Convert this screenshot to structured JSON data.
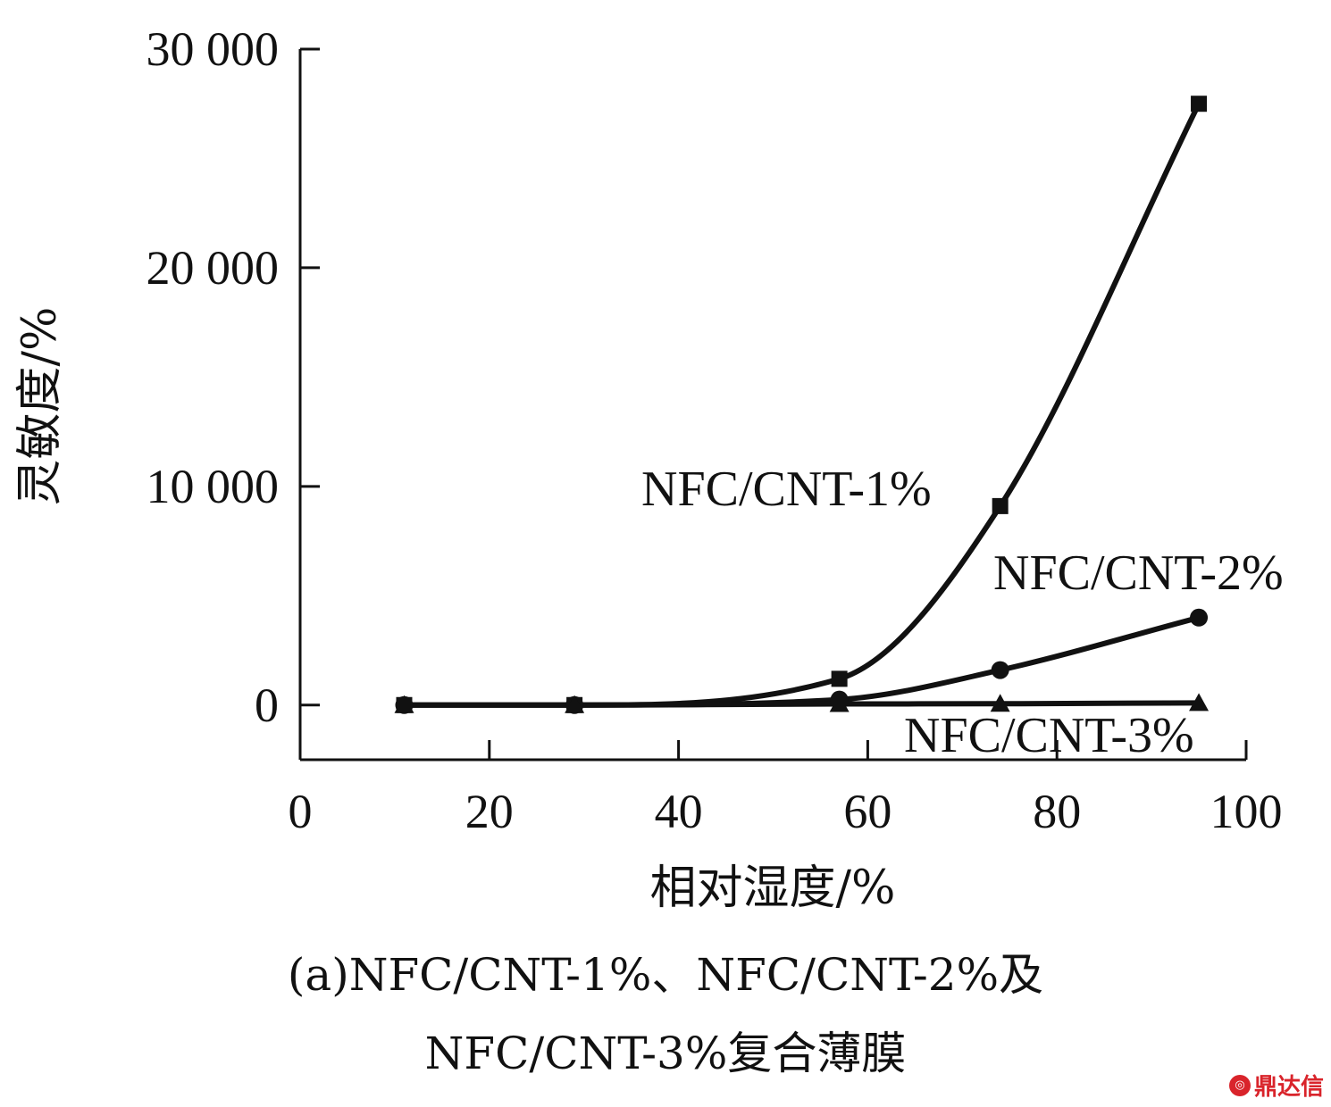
{
  "chart_data": {
    "type": "line",
    "title": "",
    "xlabel": "相对湿度/%",
    "ylabel": "灵敏度/%",
    "xlim": [
      0,
      100
    ],
    "ylim": [
      -2500,
      30000
    ],
    "x_ticks": [
      0,
      20,
      40,
      60,
      80,
      100
    ],
    "x_tick_labels": [
      "0",
      "20",
      "40",
      "60",
      "80",
      "100"
    ],
    "y_ticks": [
      0,
      10000,
      20000,
      30000
    ],
    "y_tick_labels": [
      "0",
      "10 000",
      "20 000",
      "30 000"
    ],
    "grid": false,
    "legend": "inline labels",
    "series": [
      {
        "name": "NFC/CNT-1%",
        "marker": "square",
        "x": [
          11,
          29,
          57,
          74,
          95
        ],
        "y": [
          0,
          0,
          1200,
          9100,
          27500
        ]
      },
      {
        "name": "NFC/CNT-2%",
        "marker": "circle",
        "x": [
          11,
          29,
          57,
          74,
          95
        ],
        "y": [
          0,
          0,
          250,
          1600,
          4000
        ]
      },
      {
        "name": "NFC/CNT-3%",
        "marker": "triangle",
        "x": [
          11,
          29,
          57,
          74,
          95
        ],
        "y": [
          0,
          0,
          50,
          60,
          100
        ]
      }
    ]
  },
  "caption": {
    "line1": "(a)NFC/CNT-1%、NFC/CNT-2%及",
    "line2": "NFC/CNT-3%复合薄膜"
  },
  "watermark": {
    "text": "鼎达信",
    "color": "#d9242b"
  }
}
